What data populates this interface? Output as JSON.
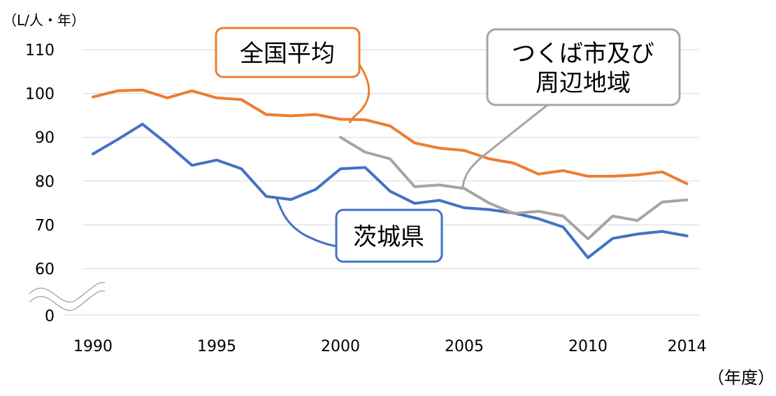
{
  "chart_data": {
    "type": "line",
    "title": "",
    "ylabel": "（L/人・年）",
    "xlabel": "（年度）",
    "ylim": [
      60,
      110
    ],
    "xlim": [
      1990,
      2014
    ],
    "y_ticks": [
      "110",
      "100",
      "90",
      "80",
      "70",
      "60",
      "0"
    ],
    "x_ticks": [
      "1990",
      "1995",
      "2000",
      "2005",
      "2010",
      "2014"
    ],
    "axis_break": true,
    "grid": true,
    "series": [
      {
        "name": "全国平均",
        "color": "#ED7D31",
        "x": [
          1990,
          1991,
          1992,
          1993,
          1994,
          1995,
          1996,
          1997,
          1998,
          1999,
          2000,
          2001,
          2002,
          2003,
          2004,
          2005,
          2006,
          2007,
          2008,
          2009,
          2010,
          2011,
          2012,
          2013,
          2014
        ],
        "values": [
          99.2,
          100.6,
          100.8,
          99.0,
          100.6,
          99.0,
          98.6,
          95.2,
          94.9,
          95.2,
          94.1,
          94.0,
          92.6,
          88.7,
          87.5,
          87.0,
          85.1,
          84.1,
          81.6,
          82.4,
          81.1,
          81.1,
          81.4,
          82.1,
          79.4
        ]
      },
      {
        "name": "茨城県",
        "color": "#4472C4",
        "x": [
          1990,
          1991,
          1992,
          1993,
          1994,
          1995,
          1996,
          1997,
          1998,
          1999,
          2000,
          2001,
          2002,
          2003,
          2004,
          2005,
          2006,
          2007,
          2008,
          2009,
          2010,
          2011,
          2012,
          2013,
          2014
        ],
        "values": [
          86.2,
          89.5,
          93.0,
          88.5,
          83.6,
          84.8,
          82.8,
          76.5,
          75.8,
          78.1,
          82.8,
          83.1,
          77.7,
          74.9,
          75.6,
          73.9,
          73.5,
          72.7,
          71.4,
          69.5,
          62.5,
          66.9,
          67.9,
          68.5,
          67.5
        ]
      },
      {
        "name": "つくば市及び周辺地域",
        "color": "#A5A5A5",
        "x": [
          2000,
          2001,
          2002,
          2003,
          2004,
          2005,
          2006,
          2007,
          2008,
          2009,
          2010,
          2011,
          2012,
          2013,
          2014
        ],
        "values": [
          90.0,
          86.6,
          85.1,
          78.7,
          79.1,
          78.3,
          75.0,
          72.6,
          73.1,
          72.0,
          66.8,
          72.0,
          71.0,
          75.2,
          75.7
        ]
      }
    ],
    "callouts": [
      {
        "series": 0,
        "text": "全国平均",
        "color": "#ED7D31"
      },
      {
        "series": 1,
        "text": "茨城県",
        "color": "#4472C4"
      },
      {
        "series": 2,
        "text_lines": [
          "つくば市及び",
          "周辺地域"
        ],
        "color": "#A5A5A5"
      }
    ]
  }
}
